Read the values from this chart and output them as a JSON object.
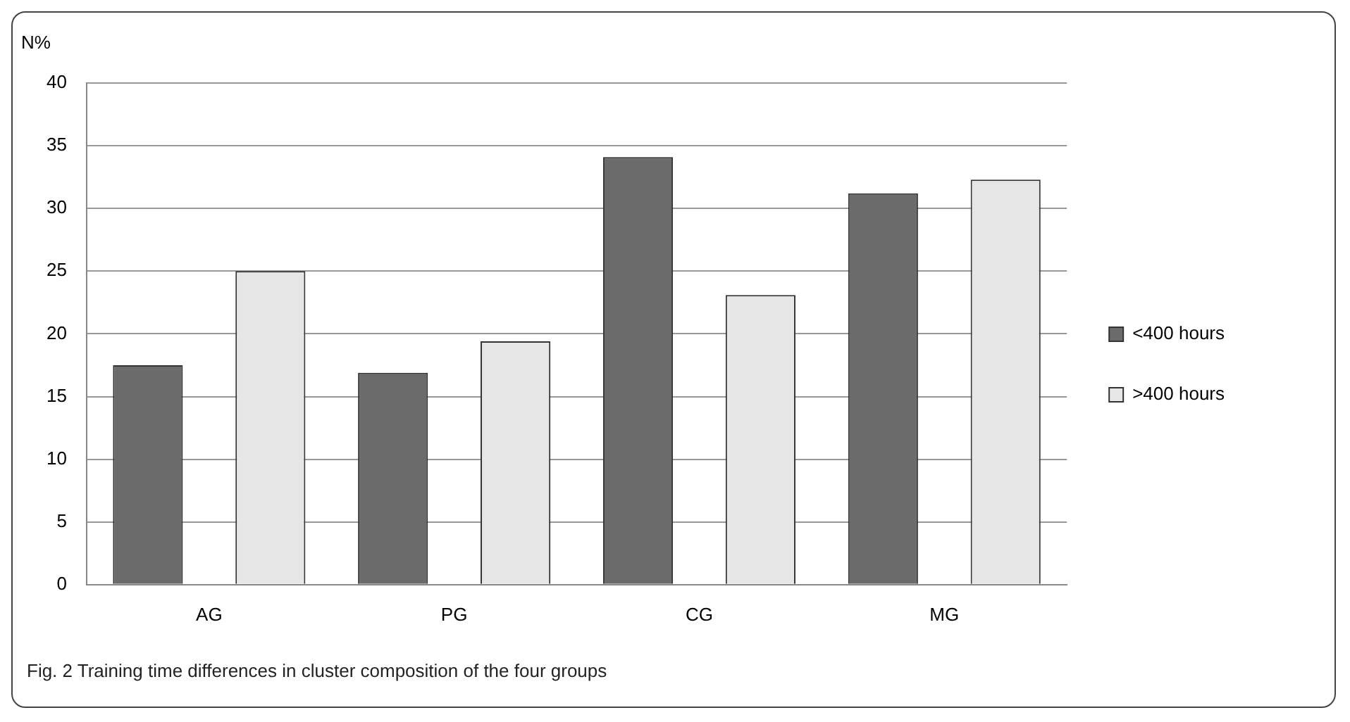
{
  "chart_data": {
    "type": "bar",
    "ylabel": "N%",
    "categories": [
      "AG",
      "PG",
      "CG",
      "MG"
    ],
    "series": [
      {
        "name": "<400 hours",
        "color": "#6b6b6b",
        "values": [
          17.5,
          16.9,
          34.1,
          31.2
        ]
      },
      {
        "name": ">400 hours",
        "color": "#e6e6e6",
        "values": [
          25,
          19.4,
          23.1,
          32.3
        ]
      }
    ],
    "ylim": [
      0,
      40
    ],
    "yticks": [
      0,
      5,
      10,
      15,
      20,
      25,
      30,
      35,
      40
    ],
    "grid": "y",
    "legend": "right",
    "annotations": [
      "Fig. 2 Training time differences in cluster composition of the four groups"
    ]
  }
}
